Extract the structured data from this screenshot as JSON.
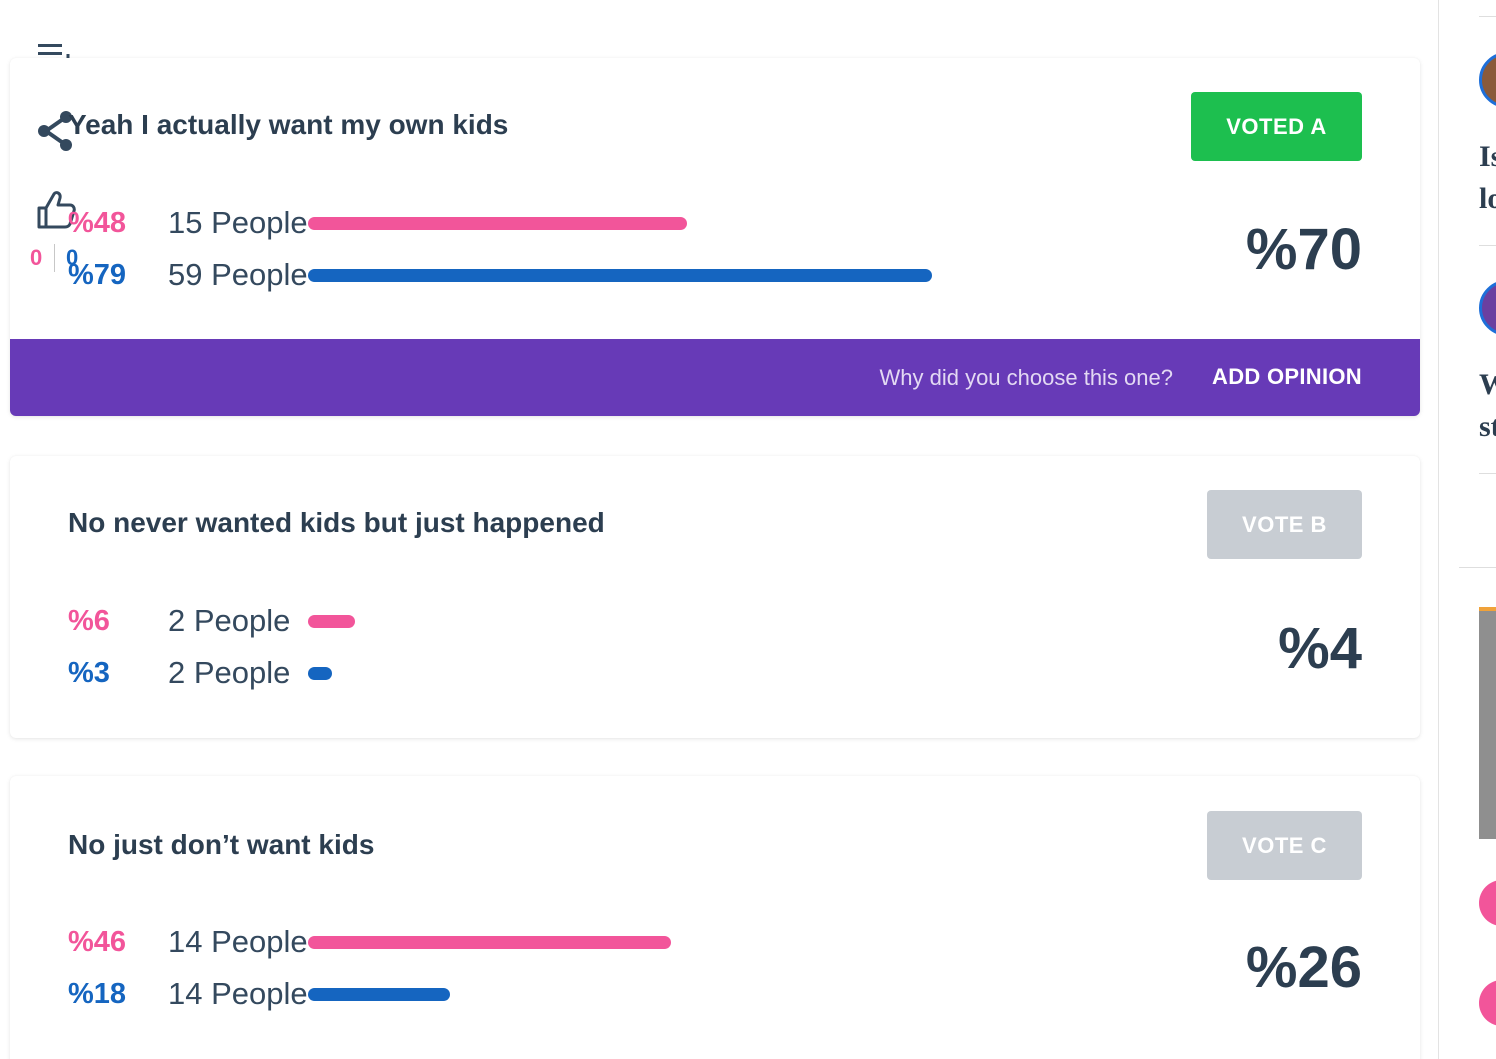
{
  "poll": {
    "options": [
      {
        "title": "Yeah I actually want my own kids",
        "button": "VOTED A",
        "pink_pct": "%48",
        "pink_people": "15 People",
        "pink_bar": 0.48,
        "blue_pct": "%79",
        "blue_people": "59 People",
        "blue_bar": 0.79,
        "total": "%70"
      },
      {
        "title": "No never wanted kids but just happened",
        "button": "VOTE B",
        "pink_pct": "%6",
        "pink_people": "2 People",
        "pink_bar": 0.06,
        "blue_pct": "%3",
        "blue_people": "2 People",
        "blue_bar": 0.03,
        "total": "%4"
      },
      {
        "title": "No just don’t want kids",
        "button": "VOTE C",
        "pink_pct": "%46",
        "pink_people": "14 People",
        "pink_bar": 0.46,
        "blue_pct": "%18",
        "blue_people": "14 People",
        "blue_bar": 0.18,
        "total": "%26"
      }
    ],
    "likes": {
      "pink": "0",
      "blue": "0"
    },
    "opinion": {
      "prompt": "Why did you choose this one?",
      "button": "ADD OPINION"
    }
  },
  "sidebar": {
    "item1_line1": "Is",
    "item1_line2": "lo",
    "item2_line1": "W",
    "item2_line2": "st"
  },
  "colors": {
    "pink": "#f2559a",
    "blue": "#1565c0",
    "voted_green": "#1dbf4f",
    "idle_gray": "#c8cdd3",
    "opinion_purple": "#673ab7"
  },
  "icons": [
    "playlist-add-icon",
    "share-icon",
    "thumbs-up-icon"
  ]
}
